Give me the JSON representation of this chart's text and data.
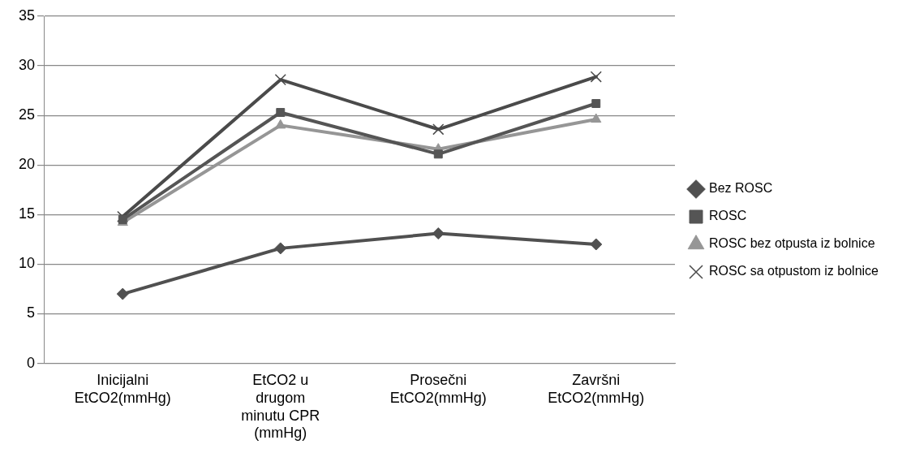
{
  "chart_data": {
    "type": "line",
    "categories": [
      "Inicijalni EtCO2(mmHg)",
      "EtCO2 u drugom minutu CPR (mmHg)",
      "Prosečni EtCO2(mmHg)",
      "Završni EtCO2(mmHg)"
    ],
    "series": [
      {
        "name": "Bez ROSC",
        "color": "#505050",
        "marker": "diamond",
        "values": [
          7.0,
          11.6,
          13.1,
          12.0
        ]
      },
      {
        "name": "ROSC",
        "color": "#555555",
        "marker": "square",
        "values": [
          14.5,
          25.3,
          21.1,
          26.2
        ]
      },
      {
        "name": "ROSC bez otpusta iz bolnice",
        "color": "#969696",
        "marker": "triangle",
        "values": [
          14.2,
          24.0,
          21.6,
          24.6
        ]
      },
      {
        "name": "ROSC sa otpustom iz bolnice",
        "color": "#4a4a4a",
        "marker": "cross",
        "values": [
          14.8,
          28.6,
          23.6,
          28.9
        ]
      }
    ],
    "ylim": [
      0,
      35
    ],
    "yticks": [
      0,
      5,
      10,
      15,
      20,
      25,
      30,
      35
    ],
    "grid": "y",
    "legend": "right",
    "line_style": "solid"
  }
}
